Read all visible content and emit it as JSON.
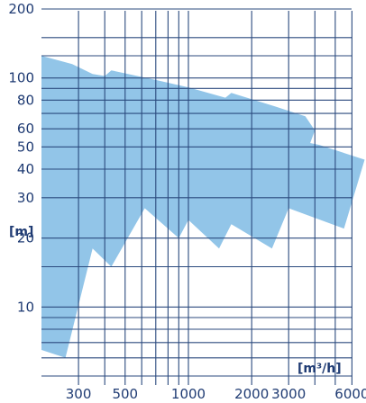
{
  "chart_data": {
    "type": "area",
    "title": "",
    "xlabel": "[m³/h]",
    "ylabel": "[m]",
    "x_scale": "log",
    "y_scale": "log",
    "xlim": [
      200,
      7000
    ],
    "ylim": [
      5,
      200
    ],
    "x_ticks": [
      {
        "value": 300,
        "label": "300"
      },
      {
        "value": 500,
        "label": "500"
      },
      {
        "value": 1000,
        "label": "1000"
      },
      {
        "value": 2000,
        "label": "2000"
      },
      {
        "value": 3000,
        "label": "3000"
      },
      {
        "value": 6000,
        "label": "6000"
      }
    ],
    "y_ticks": [
      {
        "value": 200,
        "label": "200"
      },
      {
        "value": 100,
        "label": "100"
      },
      {
        "value": 80,
        "label": "80"
      },
      {
        "value": 60,
        "label": "60"
      },
      {
        "value": 50,
        "label": "50"
      },
      {
        "value": 40,
        "label": "40"
      },
      {
        "value": 30,
        "label": "30"
      },
      {
        "value": 20,
        "label": "20"
      },
      {
        "value": 10,
        "label": "10"
      }
    ],
    "x_gridlines": [
      300,
      400,
      500,
      600,
      700,
      800,
      900,
      1000,
      2000,
      3000,
      4000,
      5000,
      6000
    ],
    "y_gridlines": [
      200,
      150,
      125,
      100,
      90,
      80,
      70,
      60,
      50,
      40,
      30,
      20,
      15,
      10,
      9,
      8,
      7,
      6,
      5
    ],
    "grid": true,
    "colors": {
      "fill": "#92c5e8",
      "grid": "#2b4a7e",
      "text": "#1f3b73"
    },
    "envelope": [
      {
        "x": 200,
        "y": 125
      },
      {
        "x": 280,
        "y": 115
      },
      {
        "x": 350,
        "y": 104
      },
      {
        "x": 400,
        "y": 102
      },
      {
        "x": 430,
        "y": 108
      },
      {
        "x": 700,
        "y": 98
      },
      {
        "x": 1000,
        "y": 91
      },
      {
        "x": 1500,
        "y": 82
      },
      {
        "x": 1600,
        "y": 86
      },
      {
        "x": 2600,
        "y": 75
      },
      {
        "x": 3600,
        "y": 68
      },
      {
        "x": 4000,
        "y": 59
      },
      {
        "x": 3800,
        "y": 52
      },
      {
        "x": 4200,
        "y": 51
      },
      {
        "x": 6900,
        "y": 44
      },
      {
        "x": 5500,
        "y": 22
      },
      {
        "x": 3000,
        "y": 27
      },
      {
        "x": 2500,
        "y": 18
      },
      {
        "x": 1600,
        "y": 23
      },
      {
        "x": 1400,
        "y": 18
      },
      {
        "x": 1000,
        "y": 24
      },
      {
        "x": 900,
        "y": 20
      },
      {
        "x": 620,
        "y": 27
      },
      {
        "x": 430,
        "y": 15
      },
      {
        "x": 350,
        "y": 18
      },
      {
        "x": 260,
        "y": 6
      },
      {
        "x": 200,
        "y": 6.5
      }
    ]
  }
}
